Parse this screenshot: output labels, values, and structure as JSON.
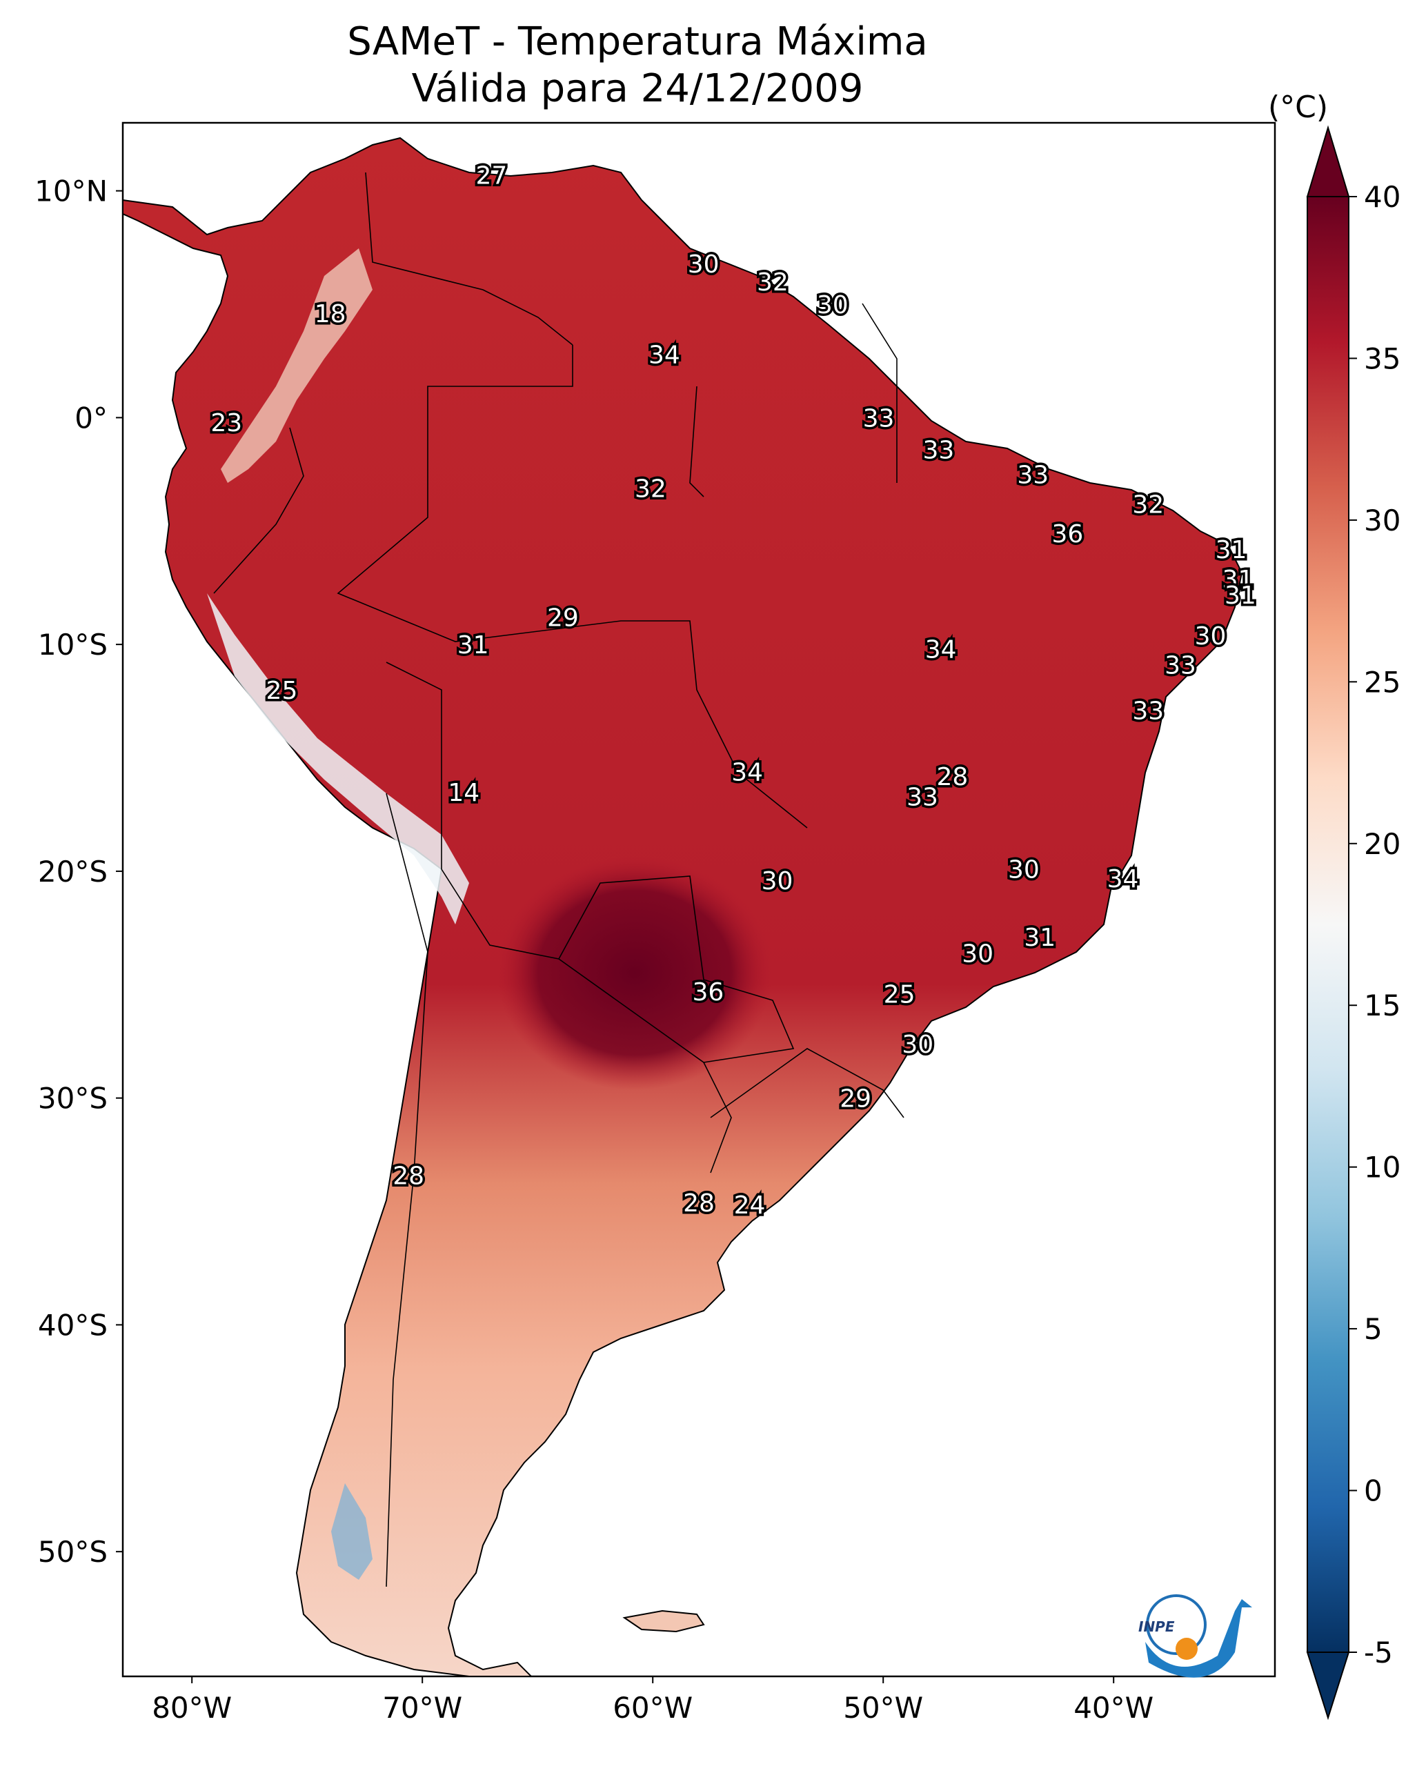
{
  "title": "SAMeT - Temperatura Máxima",
  "subtitle": "Válida para 24/12/2009",
  "colorbar": {
    "unit_label": "(°C)",
    "min": -5,
    "max": 40,
    "ticks": [
      "40",
      "35",
      "30",
      "25",
      "20",
      "15",
      "10",
      "5",
      "0",
      "-5"
    ],
    "colors": [
      "#053061",
      "#2166ac",
      "#4393c3",
      "#92c5de",
      "#d1e5f0",
      "#f7f7f7",
      "#fddbc7",
      "#f4a582",
      "#d6604d",
      "#b2182b",
      "#67001f"
    ]
  },
  "axes": {
    "lon_ticks": [
      "80°W",
      "70°W",
      "60°W",
      "50°W",
      "40°W"
    ],
    "lat_ticks": [
      "10°N",
      "0°",
      "10°S",
      "20°S",
      "30°S",
      "40°S",
      "50°S"
    ]
  },
  "station_labels": [
    {
      "value": "27",
      "lon": -67.0,
      "lat": 10.7
    },
    {
      "value": "18",
      "lon": -74.0,
      "lat": 4.6
    },
    {
      "value": "30",
      "lon": -57.8,
      "lat": 6.8
    },
    {
      "value": "32",
      "lon": -54.8,
      "lat": 6.0
    },
    {
      "value": "30",
      "lon": -52.2,
      "lat": 5.0
    },
    {
      "value": "34",
      "lon": -59.5,
      "lat": 2.8
    },
    {
      "value": "23",
      "lon": -78.5,
      "lat": -0.2
    },
    {
      "value": "33",
      "lon": -50.2,
      "lat": 0.0
    },
    {
      "value": "33",
      "lon": -47.6,
      "lat": -1.4
    },
    {
      "value": "32",
      "lon": -60.1,
      "lat": -3.1
    },
    {
      "value": "33",
      "lon": -43.5,
      "lat": -2.5
    },
    {
      "value": "32",
      "lon": -38.5,
      "lat": -3.8
    },
    {
      "value": "36",
      "lon": -42.0,
      "lat": -5.1
    },
    {
      "value": "31",
      "lon": -34.9,
      "lat": -5.8
    },
    {
      "value": "31",
      "lon": -34.6,
      "lat": -7.1
    },
    {
      "value": "31",
      "lon": -34.5,
      "lat": -7.8
    },
    {
      "value": "29",
      "lon": -63.9,
      "lat": -8.8
    },
    {
      "value": "30",
      "lon": -35.8,
      "lat": -9.6
    },
    {
      "value": "31",
      "lon": -67.8,
      "lat": -10.0
    },
    {
      "value": "34",
      "lon": -47.5,
      "lat": -10.2
    },
    {
      "value": "33",
      "lon": -37.1,
      "lat": -10.9
    },
    {
      "value": "25",
      "lon": -76.1,
      "lat": -12.0
    },
    {
      "value": "33",
      "lon": -38.5,
      "lat": -12.9
    },
    {
      "value": "34",
      "lon": -55.9,
      "lat": -15.6
    },
    {
      "value": "28",
      "lon": -47.0,
      "lat": -15.8
    },
    {
      "value": "14",
      "lon": -68.2,
      "lat": -16.5
    },
    {
      "value": "33",
      "lon": -48.3,
      "lat": -16.7
    },
    {
      "value": "30",
      "lon": -43.9,
      "lat": -19.9
    },
    {
      "value": "34",
      "lon": -39.6,
      "lat": -20.3
    },
    {
      "value": "30",
      "lon": -54.6,
      "lat": -20.4
    },
    {
      "value": "31",
      "lon": -43.2,
      "lat": -22.9
    },
    {
      "value": "30",
      "lon": -45.9,
      "lat": -23.6
    },
    {
      "value": "36",
      "lon": -57.6,
      "lat": -25.3
    },
    {
      "value": "25",
      "lon": -49.3,
      "lat": -25.4
    },
    {
      "value": "30",
      "lon": -48.5,
      "lat": -27.6
    },
    {
      "value": "29",
      "lon": -51.2,
      "lat": -30.0
    },
    {
      "value": "28",
      "lon": -70.6,
      "lat": -33.4
    },
    {
      "value": "28",
      "lon": -58.0,
      "lat": -34.6
    },
    {
      "value": "24",
      "lon": -55.8,
      "lat": -34.7
    }
  ]
}
